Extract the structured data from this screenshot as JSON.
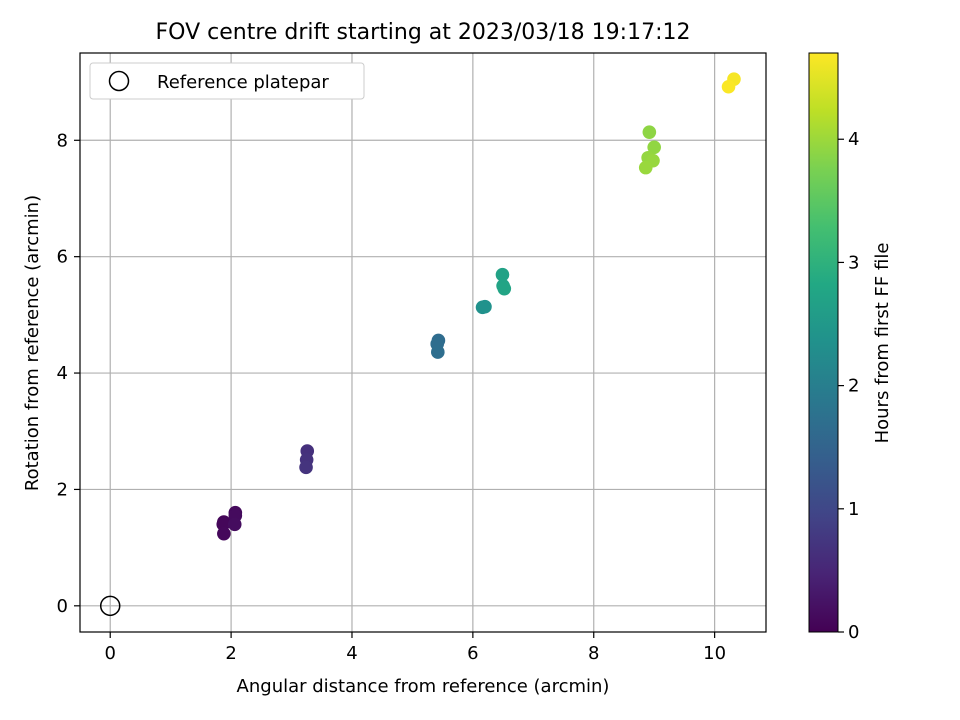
{
  "chart_data": {
    "type": "scatter",
    "title": "FOV centre drift starting at 2023/03/18 19:17:12",
    "xlabel": "Angular distance from reference (arcmin)",
    "ylabel": "Rotation from reference (arcmin)",
    "xlim": [
      -0.5,
      10.85
    ],
    "ylim": [
      -0.45,
      9.5
    ],
    "xticks": [
      0,
      2,
      4,
      6,
      8,
      10
    ],
    "yticks": [
      0,
      2,
      4,
      6,
      8
    ],
    "grid": true,
    "legend": {
      "placement": "top-left",
      "entries": [
        "Reference platepar"
      ]
    },
    "reference_point": {
      "x": 0,
      "y": 0,
      "label": "Reference platepar"
    },
    "colorbar": {
      "label": "Hours from first FF file",
      "range": [
        0,
        4.7
      ],
      "ticks": [
        0,
        1,
        2,
        3,
        4
      ],
      "colormap": "viridis"
    },
    "points": [
      {
        "x": 1.88,
        "y": 1.44,
        "hours": 0.05
      },
      {
        "x": 1.87,
        "y": 1.4,
        "hours": 0.08
      },
      {
        "x": 1.88,
        "y": 1.24,
        "hours": 0.1
      },
      {
        "x": 2.07,
        "y": 1.6,
        "hours": 0.12
      },
      {
        "x": 2.07,
        "y": 1.55,
        "hours": 0.14
      },
      {
        "x": 2.06,
        "y": 1.4,
        "hours": 0.16
      },
      {
        "x": 3.26,
        "y": 2.66,
        "hours": 0.65
      },
      {
        "x": 3.25,
        "y": 2.51,
        "hours": 0.68
      },
      {
        "x": 3.24,
        "y": 2.38,
        "hours": 0.7
      },
      {
        "x": 5.43,
        "y": 4.56,
        "hours": 1.65
      },
      {
        "x": 5.41,
        "y": 4.5,
        "hours": 1.67
      },
      {
        "x": 5.42,
        "y": 4.36,
        "hours": 1.7
      },
      {
        "x": 6.16,
        "y": 5.13,
        "hours": 2.35
      },
      {
        "x": 6.2,
        "y": 5.14,
        "hours": 2.37
      },
      {
        "x": 6.49,
        "y": 5.69,
        "hours": 2.7
      },
      {
        "x": 6.5,
        "y": 5.5,
        "hours": 2.72
      },
      {
        "x": 6.52,
        "y": 5.45,
        "hours": 2.74
      },
      {
        "x": 8.92,
        "y": 8.14,
        "hours": 3.9
      },
      {
        "x": 9.0,
        "y": 7.88,
        "hours": 3.92
      },
      {
        "x": 8.9,
        "y": 7.7,
        "hours": 3.94
      },
      {
        "x": 8.98,
        "y": 7.65,
        "hours": 3.96
      },
      {
        "x": 8.86,
        "y": 7.53,
        "hours": 3.98
      },
      {
        "x": 10.32,
        "y": 9.05,
        "hours": 4.65
      },
      {
        "x": 10.23,
        "y": 8.92,
        "hours": 4.68
      }
    ]
  }
}
